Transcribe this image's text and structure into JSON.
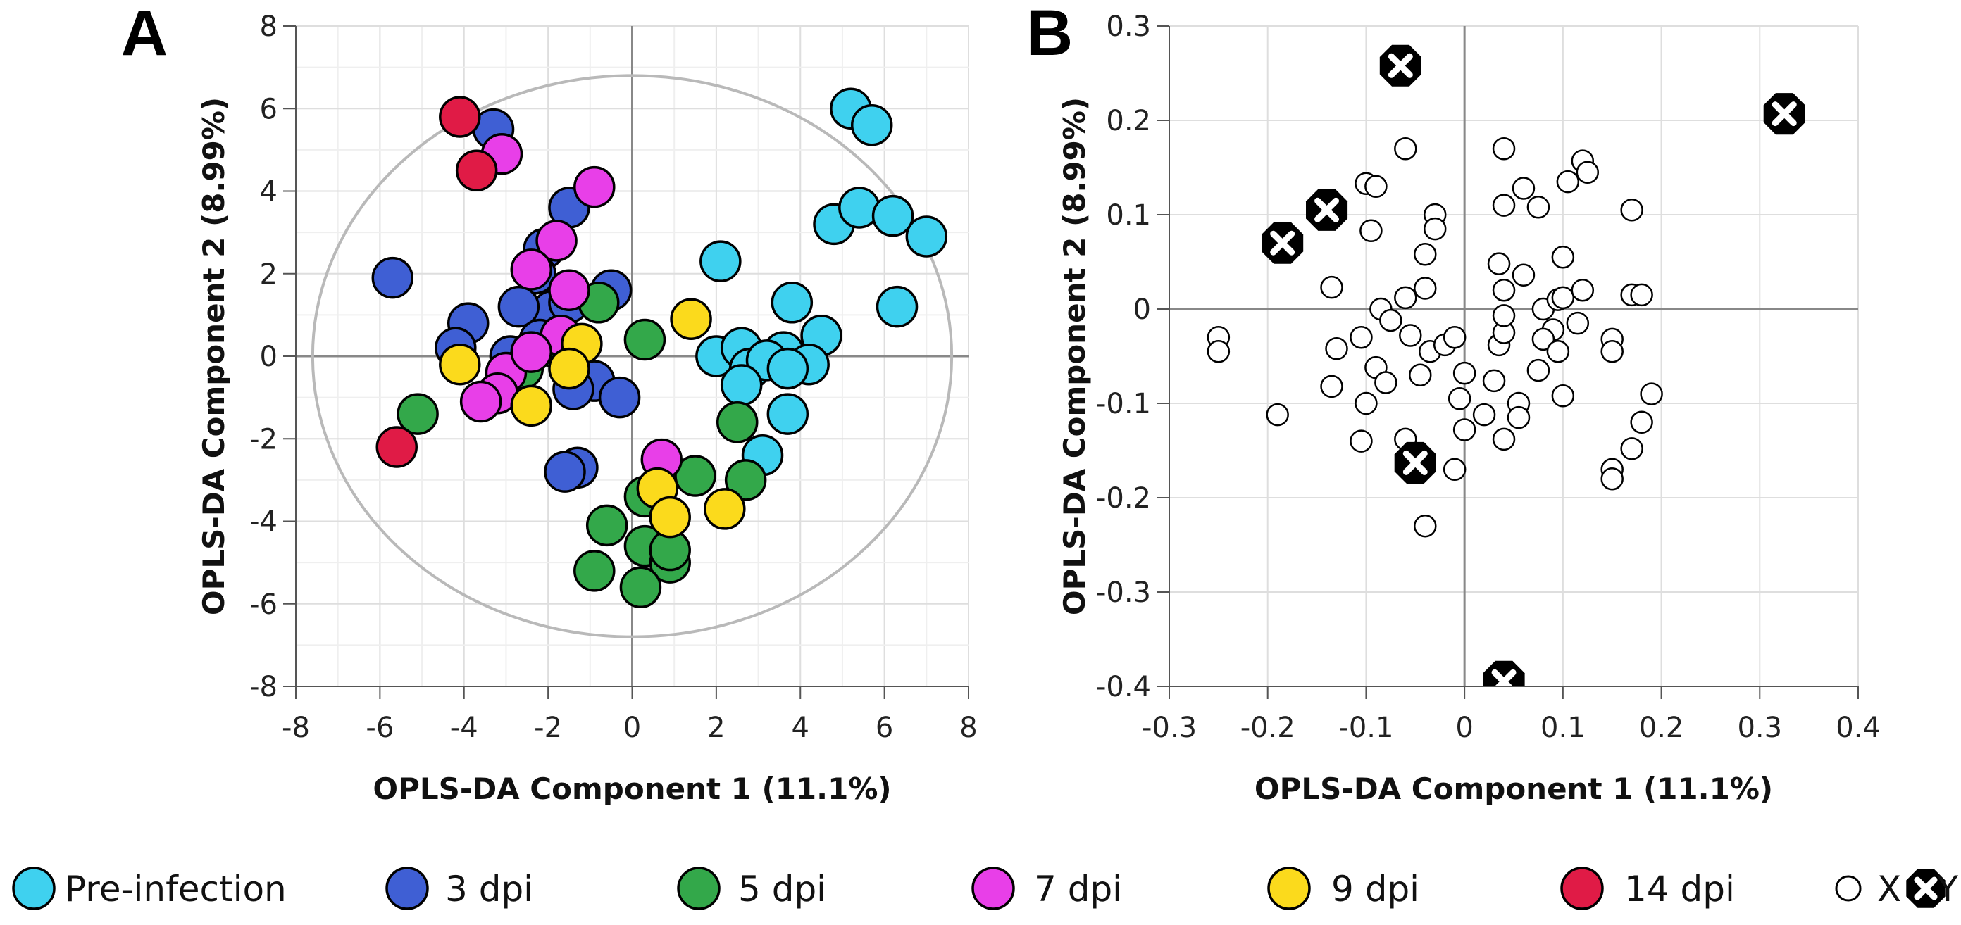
{
  "chart_data": [
    {
      "panel": "A",
      "type": "scatter",
      "xlabel": "OPLS-DA Component 1 (11.1%)",
      "ylabel": "OPLS-DA Component 2 (8.99%)",
      "xlim": [
        -8,
        8
      ],
      "ylim": [
        -8,
        8
      ],
      "xticks": [
        "-8",
        "-6",
        "-4",
        "-2",
        "0",
        "2",
        "4",
        "6",
        "8"
      ],
      "yticks": [
        "-8",
        "-6",
        "-4",
        "-2",
        "0",
        "2",
        "4",
        "6",
        "8"
      ],
      "grid": true,
      "ellipse": {
        "cx": 0,
        "cy": 0,
        "rx": 7.6,
        "ry": 6.8
      },
      "series": [
        {
          "name": "Pre-infection",
          "color": "#3fd1ef",
          "points": [
            [
              5.2,
              6.0
            ],
            [
              5.7,
              5.6
            ],
            [
              4.8,
              3.2
            ],
            [
              5.4,
              3.6
            ],
            [
              6.2,
              3.4
            ],
            [
              7.0,
              2.9
            ],
            [
              6.3,
              1.2
            ],
            [
              2.1,
              2.3
            ],
            [
              3.8,
              1.3
            ],
            [
              4.5,
              0.5
            ],
            [
              3.6,
              0.1
            ],
            [
              4.2,
              -0.2
            ],
            [
              2.0,
              0.0
            ],
            [
              2.6,
              0.2
            ],
            [
              2.8,
              -0.3
            ],
            [
              3.2,
              -0.1
            ],
            [
              3.7,
              -0.3
            ],
            [
              2.6,
              -0.7
            ],
            [
              3.7,
              -1.4
            ],
            [
              3.1,
              -2.4
            ]
          ]
        },
        {
          "name": "3 dpi",
          "color": "#3f5fd4",
          "points": [
            [
              -3.3,
              5.5
            ],
            [
              -5.7,
              1.9
            ],
            [
              -1.5,
              3.6
            ],
            [
              -2.1,
              2.6
            ],
            [
              -2.3,
              2.0
            ],
            [
              -1.9,
              1.1
            ],
            [
              -2.7,
              1.2
            ],
            [
              -3.9,
              0.8
            ],
            [
              -4.2,
              0.2
            ],
            [
              -2.9,
              0.0
            ],
            [
              -1.5,
              1.3
            ],
            [
              -0.5,
              1.6
            ],
            [
              -0.9,
              -0.6
            ],
            [
              -1.4,
              -0.8
            ],
            [
              -1.3,
              -2.7
            ],
            [
              -1.6,
              -2.8
            ],
            [
              -0.3,
              -1.0
            ],
            [
              -2.2,
              0.4
            ]
          ]
        },
        {
          "name": "5 dpi",
          "color": "#33a84a",
          "points": [
            [
              -5.1,
              -1.4
            ],
            [
              -0.8,
              1.3
            ],
            [
              0.3,
              0.4
            ],
            [
              -1.8,
              0.2
            ],
            [
              -2.6,
              -0.3
            ],
            [
              2.5,
              -1.6
            ],
            [
              2.7,
              -3.0
            ],
            [
              1.5,
              -2.9
            ],
            [
              0.3,
              -3.4
            ],
            [
              -0.6,
              -4.1
            ],
            [
              0.3,
              -4.6
            ],
            [
              0.9,
              -5.0
            ],
            [
              -0.9,
              -5.2
            ],
            [
              0.2,
              -5.6
            ],
            [
              0.9,
              -4.7
            ]
          ]
        },
        {
          "name": "7 dpi",
          "color": "#e83fe8",
          "points": [
            [
              -3.1,
              4.9
            ],
            [
              -0.9,
              4.1
            ],
            [
              -1.8,
              2.8
            ],
            [
              -2.4,
              2.1
            ],
            [
              -1.5,
              1.6
            ],
            [
              -1.7,
              0.5
            ],
            [
              -3.0,
              -0.4
            ],
            [
              -3.2,
              -0.9
            ],
            [
              -3.6,
              -1.1
            ],
            [
              0.7,
              -2.5
            ],
            [
              -2.4,
              0.1
            ]
          ]
        },
        {
          "name": "9 dpi",
          "color": "#fbda1c",
          "points": [
            [
              1.4,
              0.9
            ],
            [
              -4.1,
              -0.2
            ],
            [
              -2.4,
              -1.2
            ],
            [
              -1.2,
              0.3
            ],
            [
              0.6,
              -3.2
            ],
            [
              0.9,
              -3.9
            ],
            [
              2.2,
              -3.7
            ],
            [
              -1.5,
              -0.3
            ]
          ]
        },
        {
          "name": "14 dpi",
          "color": "#e01b46",
          "points": [
            [
              -4.1,
              5.8
            ],
            [
              -3.7,
              4.5
            ],
            [
              -5.6,
              -2.2
            ]
          ]
        }
      ]
    },
    {
      "panel": "B",
      "type": "scatter",
      "xlabel": "OPLS-DA Component 1 (11.1%)",
      "ylabel": "OPLS-DA Component 2 (8.99%)",
      "xlim": [
        -0.3,
        0.4
      ],
      "ylim": [
        -0.4,
        0.3
      ],
      "xticks": [
        "-0.3",
        "-0.2",
        "-0.1",
        "0",
        "0.1",
        "0.2",
        "0.3",
        "0.4"
      ],
      "yticks": [
        "-0.4",
        "-0.3",
        "-0.2",
        "-0.1",
        "0",
        "0.1",
        "0.2",
        "0.3"
      ],
      "grid": true,
      "series": [
        {
          "name": "X",
          "color": "#ffffff",
          "points": [
            [
              -0.25,
              -0.03
            ],
            [
              -0.25,
              -0.045
            ],
            [
              -0.19,
              -0.112
            ],
            [
              -0.135,
              0.023
            ],
            [
              -0.1,
              0.133
            ],
            [
              -0.09,
              0.13
            ],
            [
              -0.095,
              0.083
            ],
            [
              -0.06,
              0.17
            ],
            [
              -0.03,
              0.1
            ],
            [
              -0.03,
              0.085
            ],
            [
              -0.04,
              0.058
            ],
            [
              -0.04,
              0.022
            ],
            [
              -0.06,
              0.012
            ],
            [
              -0.085,
              0.0
            ],
            [
              -0.075,
              -0.012
            ],
            [
              -0.055,
              -0.028
            ],
            [
              -0.105,
              -0.03
            ],
            [
              -0.13,
              -0.042
            ],
            [
              -0.09,
              -0.062
            ],
            [
              -0.08,
              -0.078
            ],
            [
              -0.135,
              -0.082
            ],
            [
              -0.1,
              -0.1
            ],
            [
              -0.105,
              -0.14
            ],
            [
              -0.06,
              -0.138
            ],
            [
              -0.045,
              -0.07
            ],
            [
              -0.035,
              -0.045
            ],
            [
              -0.02,
              -0.038
            ],
            [
              -0.01,
              -0.03
            ],
            [
              0.0,
              -0.068
            ],
            [
              -0.005,
              -0.095
            ],
            [
              0.0,
              -0.128
            ],
            [
              0.02,
              -0.112
            ],
            [
              0.035,
              -0.038
            ],
            [
              0.03,
              -0.076
            ],
            [
              0.04,
              -0.025
            ],
            [
              0.04,
              -0.007
            ],
            [
              0.04,
              0.02
            ],
            [
              0.035,
              0.048
            ],
            [
              0.04,
              0.11
            ],
            [
              0.04,
              0.17
            ],
            [
              0.06,
              0.128
            ],
            [
              0.075,
              0.108
            ],
            [
              0.06,
              0.036
            ],
            [
              0.08,
              0.0
            ],
            [
              0.095,
              0.01
            ],
            [
              0.1,
              0.055
            ],
            [
              0.09,
              -0.022
            ],
            [
              0.08,
              -0.032
            ],
            [
              0.075,
              -0.065
            ],
            [
              0.095,
              -0.045
            ],
            [
              0.1,
              -0.092
            ],
            [
              0.1,
              0.012
            ],
            [
              0.115,
              -0.015
            ],
            [
              0.12,
              0.157
            ],
            [
              0.125,
              0.145
            ],
            [
              0.105,
              0.135
            ],
            [
              0.12,
              0.02
            ],
            [
              0.15,
              -0.032
            ],
            [
              0.15,
              -0.045
            ],
            [
              0.17,
              0.105
            ],
            [
              0.17,
              0.015
            ],
            [
              0.18,
              0.015
            ],
            [
              0.19,
              -0.09
            ],
            [
              0.18,
              -0.12
            ],
            [
              0.17,
              -0.148
            ],
            [
              0.15,
              -0.17
            ],
            [
              0.15,
              -0.18
            ],
            [
              0.055,
              -0.1
            ],
            [
              0.055,
              -0.115
            ],
            [
              0.04,
              -0.138
            ],
            [
              -0.04,
              -0.23
            ],
            [
              -0.01,
              -0.17
            ]
          ]
        },
        {
          "name": "Y",
          "color": "#000000",
          "points": [
            [
              -0.065,
              0.258
            ],
            [
              0.325,
              0.207
            ],
            [
              -0.14,
              0.105
            ],
            [
              -0.185,
              0.07
            ],
            [
              -0.05,
              -0.163
            ],
            [
              0.04,
              -0.395
            ]
          ]
        }
      ]
    }
  ],
  "legend": [
    {
      "label": "Pre-infection",
      "color": "#3fd1ef",
      "marker": "big"
    },
    {
      "label": "3 dpi",
      "color": "#3f5fd4",
      "marker": "big"
    },
    {
      "label": "5 dpi",
      "color": "#33a84a",
      "marker": "big"
    },
    {
      "label": "7 dpi",
      "color": "#e83fe8",
      "marker": "big"
    },
    {
      "label": "9 dpi",
      "color": "#fbda1c",
      "marker": "big"
    },
    {
      "label": "14 dpi",
      "color": "#e01b46",
      "marker": "big"
    },
    {
      "label": "X",
      "color": "#ffffff",
      "marker": "small"
    },
    {
      "label": "Y",
      "color": "#000000",
      "marker": "cross"
    }
  ]
}
